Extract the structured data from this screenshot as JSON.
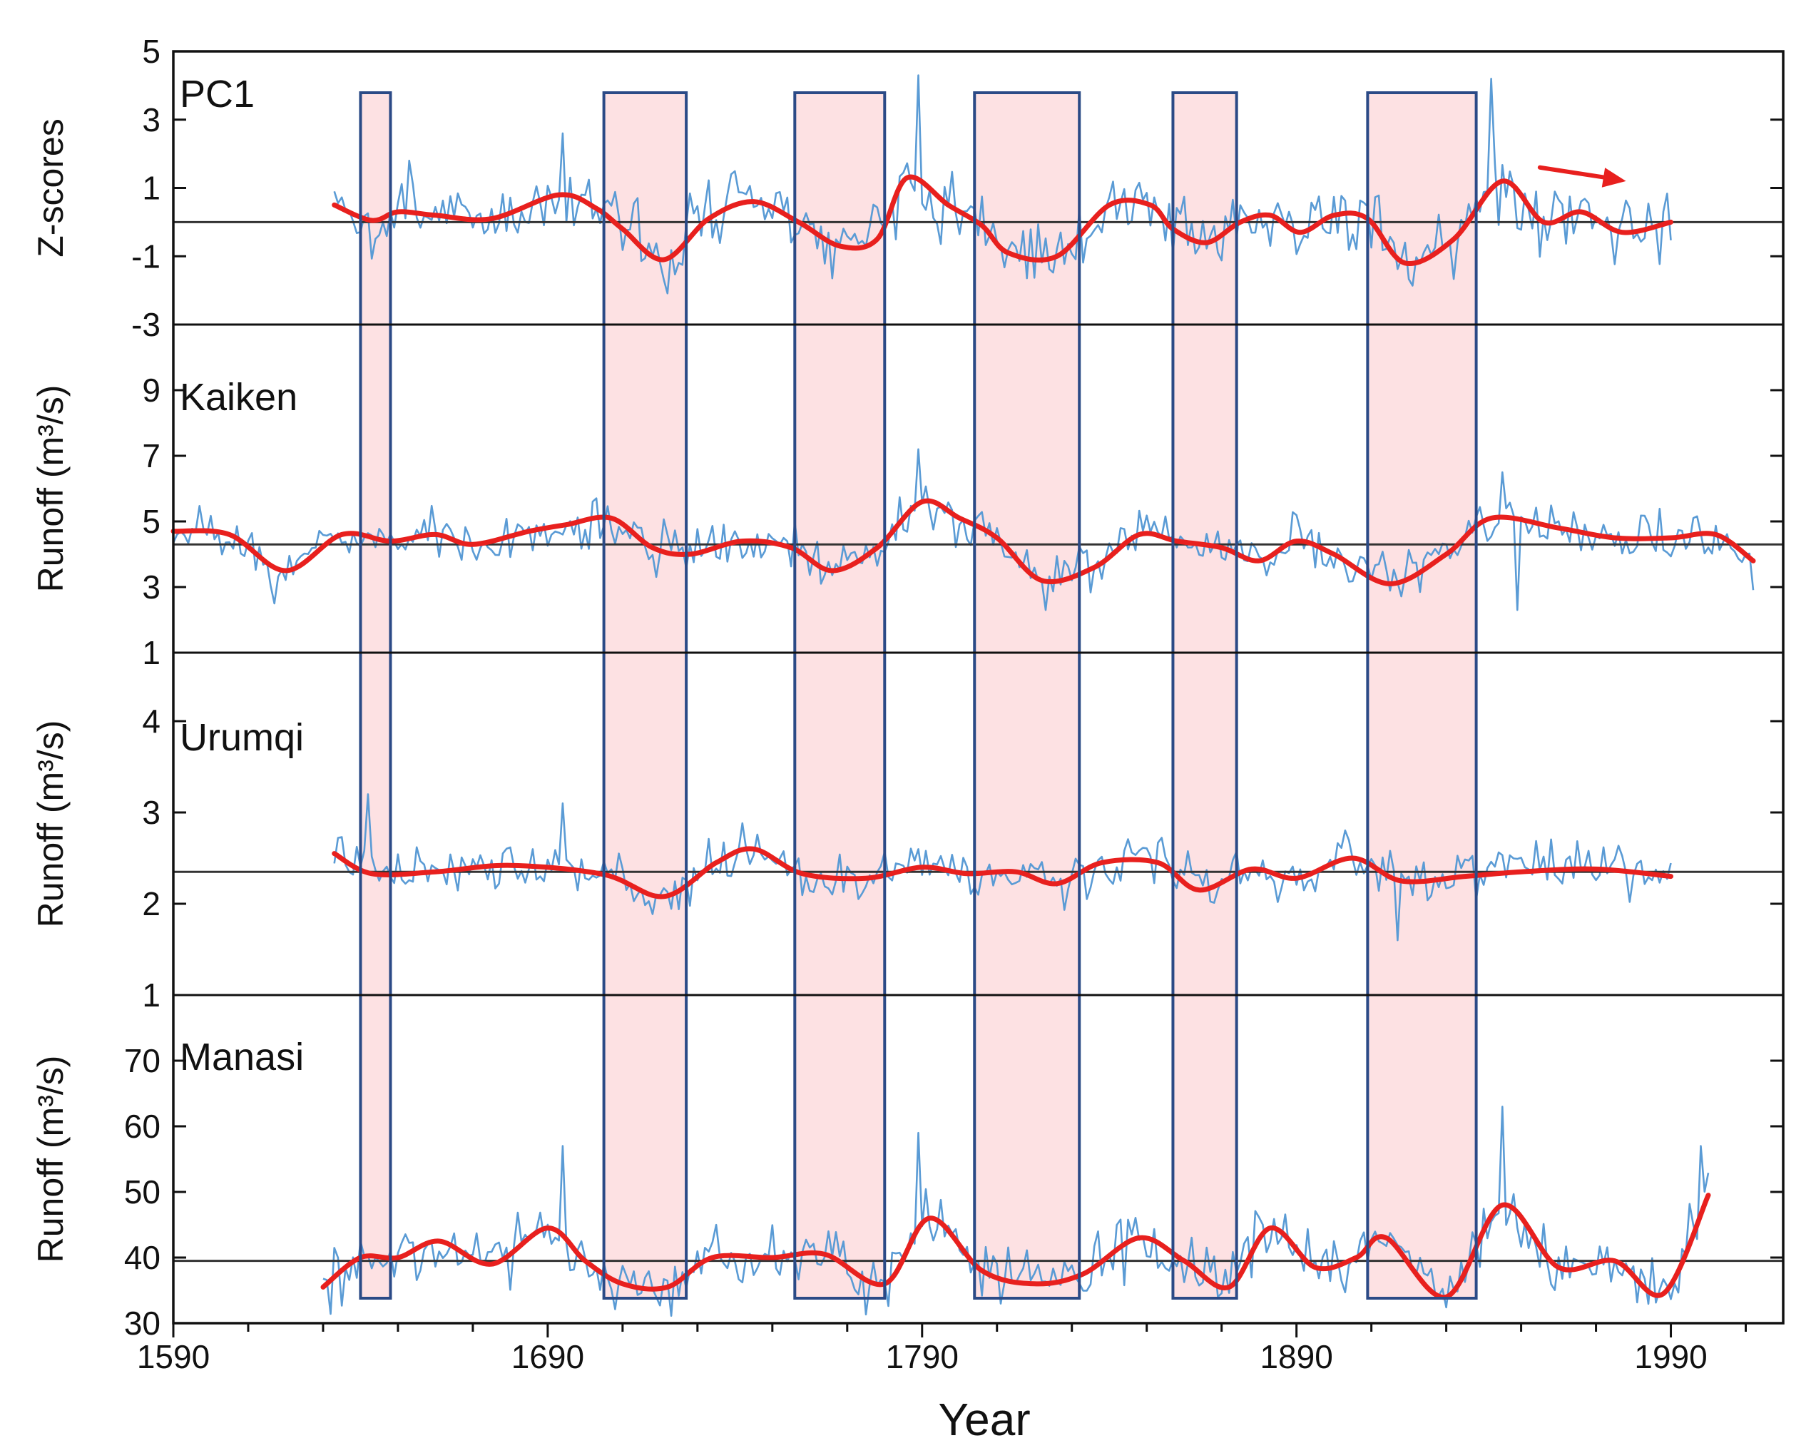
{
  "chart_data": {
    "type": "line",
    "title": "",
    "xlabel": "Year",
    "xlim": [
      1590,
      2020
    ],
    "x_ticks": [
      1590,
      1690,
      1790,
      1890,
      1990
    ],
    "shaded_periods": [
      [
        1640,
        1648
      ],
      [
        1705,
        1727
      ],
      [
        1756,
        1780
      ],
      [
        1804,
        1832
      ],
      [
        1857,
        1874
      ],
      [
        1909,
        1938
      ]
    ],
    "trend_arrow": {
      "from": [
        1955,
        1.6
      ],
      "to": [
        1978,
        1.2
      ],
      "color": "#e8201e"
    },
    "panels": [
      {
        "label": "PC1",
        "ylabel": "Z-scores",
        "ylim": [
          -3,
          5
        ],
        "yticks": [
          -3,
          -1,
          1,
          3,
          5
        ],
        "ytick_labels": [
          "-3",
          "-1",
          "1",
          "3",
          "5"
        ],
        "reference": 0,
        "series": [
          {
            "name": "annual",
            "color": "#5a9bd5",
            "start": 1633,
            "end": 1990,
            "amp": 0.75,
            "seed": 3,
            "spikes": [
              [
                1789,
                4.3
              ],
              [
                1942,
                4.2
              ],
              [
                1653,
                1.8
              ],
              [
                1694,
                2.6
              ]
            ]
          },
          {
            "name": "smoothed",
            "color": "#e8201e",
            "x": [
              1633,
              1643,
              1650,
              1660,
              1675,
              1693,
              1703,
              1710,
              1721,
              1733,
              1745,
              1757,
              1768,
              1778,
              1786,
              1797,
              1806,
              1813,
              1826,
              1840,
              1851,
              1857,
              1866,
              1875,
              1883,
              1891,
              1900,
              1909,
              1919,
              1932,
              1945,
              1956,
              1966,
              1977,
              1990
            ],
            "y": [
              0.5,
              0.05,
              0.3,
              0.2,
              0.1,
              0.8,
              0.4,
              -0.2,
              -1.1,
              0.1,
              0.6,
              0.0,
              -0.7,
              -0.5,
              1.3,
              0.5,
              -0.1,
              -0.9,
              -1.0,
              0.5,
              0.5,
              -0.2,
              -0.6,
              0.0,
              0.2,
              -0.3,
              0.2,
              0.1,
              -1.2,
              -0.5,
              1.2,
              0.0,
              0.3,
              -0.3,
              0.0
            ]
          }
        ]
      },
      {
        "label": "Kaiken",
        "ylabel": "Runoff (m³/s)",
        "ylim": [
          1,
          11
        ],
        "yticks": [
          1,
          3,
          5,
          7,
          9
        ],
        "ytick_labels": [
          "1",
          "3",
          "5",
          "7",
          "9"
        ],
        "reference": 4.3,
        "series": [
          {
            "name": "annual",
            "color": "#5a9bd5",
            "start": 1590,
            "end": 2012,
            "amp": 0.55,
            "seed": 7,
            "spikes": [
              [
                1789,
                7.2
              ],
              [
                1945,
                6.5
              ],
              [
                1617,
                2.5
              ],
              [
                1823,
                2.3
              ],
              [
                1949,
                2.3
              ]
            ]
          },
          {
            "name": "smoothed",
            "color": "#e8201e",
            "x": [
              1590,
              1605,
              1620,
              1635,
              1648,
              1660,
              1670,
              1685,
              1695,
              1707,
              1718,
              1728,
              1742,
              1755,
              1766,
              1778,
              1790,
              1800,
              1810,
              1822,
              1836,
              1848,
              1858,
              1870,
              1880,
              1890,
              1900,
              1915,
              1930,
              1942,
              1960,
              1975,
              1990,
              2002,
              2012
            ],
            "y": [
              4.7,
              4.6,
              3.5,
              4.6,
              4.4,
              4.6,
              4.3,
              4.7,
              4.9,
              5.1,
              4.2,
              4.0,
              4.4,
              4.2,
              3.5,
              4.2,
              5.6,
              5.1,
              4.5,
              3.2,
              3.6,
              4.6,
              4.4,
              4.2,
              3.8,
              4.4,
              4.0,
              3.1,
              4.0,
              5.1,
              4.8,
              4.5,
              4.5,
              4.6,
              3.8
            ]
          }
        ]
      },
      {
        "label": "Urumqi",
        "ylabel": "Runoff (m³/s)",
        "ylim": [
          1,
          4.75
        ],
        "yticks": [
          1,
          2,
          3,
          4
        ],
        "ytick_labels": [
          "1",
          "2",
          "3",
          "4"
        ],
        "reference": 2.35,
        "series": [
          {
            "name": "annual",
            "color": "#5a9bd5",
            "start": 1633,
            "end": 1990,
            "amp": 0.2,
            "seed": 11,
            "spikes": [
              [
                1642,
                3.2
              ],
              [
                1694,
                3.1
              ],
              [
                1917,
                1.6
              ]
            ]
          },
          {
            "name": "smoothed",
            "color": "#e8201e",
            "x": [
              1633,
              1643,
              1660,
              1680,
              1705,
              1721,
              1735,
              1745,
              1758,
              1775,
              1790,
              1802,
              1815,
              1826,
              1838,
              1853,
              1864,
              1878,
              1890,
              1905,
              1918,
              1935,
              1950,
              1970,
              1990
            ],
            "y": [
              2.55,
              2.33,
              2.35,
              2.42,
              2.32,
              2.08,
              2.45,
              2.6,
              2.33,
              2.28,
              2.4,
              2.33,
              2.35,
              2.22,
              2.45,
              2.45,
              2.15,
              2.38,
              2.28,
              2.5,
              2.25,
              2.3,
              2.35,
              2.38,
              2.3
            ]
          }
        ]
      },
      {
        "label": "Manasi",
        "ylabel": "Runoff (m³/s)",
        "ylim": [
          30,
          80
        ],
        "yticks": [
          30,
          40,
          50,
          60,
          70
        ],
        "ytick_labels": [
          "30",
          "40",
          "50",
          "60",
          "70"
        ],
        "reference": 39.5,
        "series": [
          {
            "name": "annual",
            "color": "#5a9bd5",
            "start": 1630,
            "end": 2000,
            "amp": 3.5,
            "seed": 19,
            "spikes": [
              [
                1694,
                57
              ],
              [
                1789,
                59
              ],
              [
                1945,
                63
              ],
              [
                1998,
                57
              ]
            ]
          },
          {
            "name": "smoothed",
            "color": "#e8201e",
            "x": [
              1630,
              1640,
              1650,
              1661,
              1675,
              1690,
              1700,
              1710,
              1722,
              1734,
              1750,
              1764,
              1780,
              1792,
              1806,
              1820,
              1833,
              1848,
              1860,
              1872,
              1883,
              1895,
              1906,
              1914,
              1930,
              1945,
              1960,
              1975,
              1988,
              2000
            ],
            "y": [
              35.5,
              40,
              40,
              42.5,
              39,
              44.5,
              39.5,
              36,
              35.5,
              40,
              40,
              40.5,
              36,
              46,
              38,
              36,
              37.5,
              43,
              39.5,
              35.5,
              44.5,
              38.5,
              40,
              43,
              34,
              48,
              38.5,
              39.5,
              34.5,
              49.5
            ]
          }
        ]
      }
    ]
  }
}
